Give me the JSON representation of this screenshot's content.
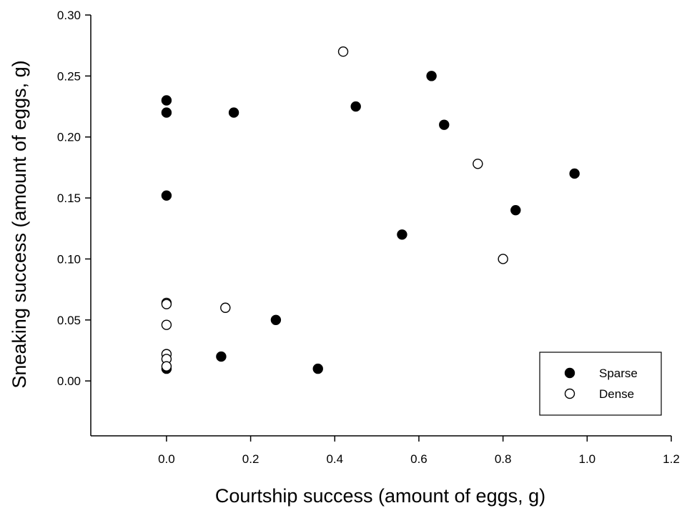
{
  "chart_data": {
    "type": "scatter",
    "xlabel": "Courtship success (amount of eggs, g)",
    "ylabel": "Sneaking success (amount of eggs, g)",
    "xlim": [
      -0.18,
      1.2
    ],
    "ylim": [
      -0.045,
      0.3
    ],
    "xticks": [
      "0.0",
      "0.2",
      "0.4",
      "0.6",
      "0.8",
      "1.0",
      "1.2"
    ],
    "yticks": [
      "0.00",
      "0.05",
      "0.10",
      "0.15",
      "0.20",
      "0.25",
      "0.30"
    ],
    "grid": false,
    "legend_position": "bottom-right",
    "series": [
      {
        "name": "Sparse",
        "marker": "filled-circle",
        "color": "#000000",
        "points": [
          [
            0.0,
            0.23
          ],
          [
            0.0,
            0.22
          ],
          [
            0.0,
            0.152
          ],
          [
            0.0,
            0.01
          ],
          [
            0.13,
            0.02
          ],
          [
            0.16,
            0.22
          ],
          [
            0.26,
            0.05
          ],
          [
            0.36,
            0.01
          ],
          [
            0.45,
            0.225
          ],
          [
            0.56,
            0.12
          ],
          [
            0.63,
            0.25
          ],
          [
            0.66,
            0.21
          ],
          [
            0.83,
            0.14
          ],
          [
            0.97,
            0.17
          ]
        ]
      },
      {
        "name": "Dense",
        "marker": "open-circle",
        "color": "#000000",
        "points": [
          [
            0.0,
            0.064
          ],
          [
            0.0,
            0.063
          ],
          [
            0.0,
            0.046
          ],
          [
            0.0,
            0.022
          ],
          [
            0.0,
            0.018
          ],
          [
            0.0,
            0.012
          ],
          [
            0.14,
            0.06
          ],
          [
            0.42,
            0.27
          ],
          [
            0.74,
            0.178
          ],
          [
            0.8,
            0.1
          ]
        ]
      }
    ]
  }
}
